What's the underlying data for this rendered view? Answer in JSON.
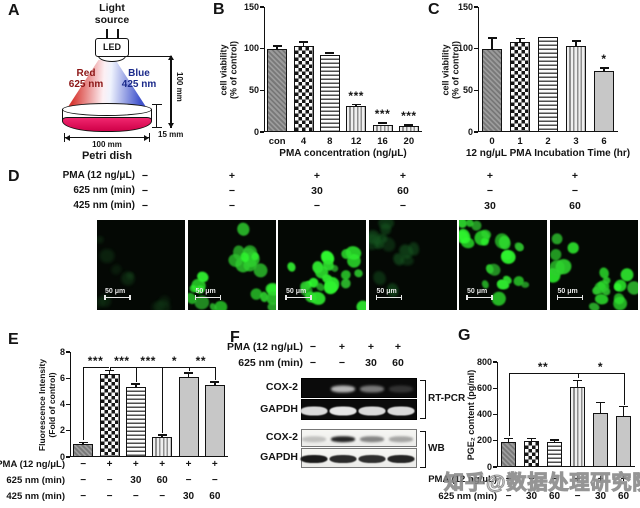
{
  "panels": {
    "a": {
      "label": "A"
    },
    "b": {
      "label": "B"
    },
    "c": {
      "label": "C"
    },
    "d": {
      "label": "D"
    },
    "e": {
      "label": "E"
    },
    "f": {
      "label": "F"
    },
    "g": {
      "label": "G"
    }
  },
  "panel_a": {
    "light_source": "Light source",
    "led": "LED",
    "red": "Red\n625 nm",
    "blue": "Blue\n425 nm",
    "dim_vertical": "100 mm",
    "dim_dish_height": "15 mm",
    "dim_dish_width": "100 mm",
    "petri_dish": "Petri dish",
    "colors": {
      "red_text": "#8c1616",
      "blue_text": "#1b2a8a",
      "dish": "#e1004c"
    }
  },
  "chart_data": [
    {
      "id": "b",
      "type": "bar",
      "panel": "B",
      "ylabel": "cell viability\n(% of control)",
      "xlabel": "PMA concentration (ng/μL)",
      "categories": [
        "con",
        "4",
        "8",
        "12",
        "16",
        "20"
      ],
      "values": [
        100,
        103,
        93,
        31,
        9,
        7
      ],
      "errors": [
        3,
        5,
        2,
        2,
        2,
        1.5
      ],
      "ylim": [
        0,
        150
      ],
      "yticks": [
        0,
        50,
        100,
        150
      ],
      "patterns": [
        "diag",
        "check",
        "hlines",
        "vlines",
        "vlines",
        "vlines"
      ],
      "sig_above": [
        "",
        "",
        "",
        "***",
        "***",
        "***"
      ]
    },
    {
      "id": "c",
      "type": "bar",
      "panel": "C",
      "ylabel": "cell viability\n(% of control)",
      "xlabel": "12 ng/μL PMA Incubation Time (hr)",
      "categories": [
        "0",
        "1",
        "2",
        "3",
        "6"
      ],
      "values": [
        100,
        108,
        114,
        103,
        73
      ],
      "errors": [
        13,
        4,
        0,
        6,
        4
      ],
      "ylim": [
        0,
        150
      ],
      "yticks": [
        0,
        50,
        100,
        150
      ],
      "patterns": [
        "diag",
        "check",
        "hlines",
        "vlines",
        "solid"
      ],
      "sig_above": [
        "",
        "",
        "",
        "",
        "*"
      ]
    },
    {
      "id": "e",
      "type": "bar",
      "panel": "E",
      "ylabel": "Fluorescence Intensity\n(Fold of control)",
      "xlabel": "",
      "categories": [
        "",
        "",
        "",
        "",
        "",
        ""
      ],
      "values": [
        1.0,
        6.3,
        5.3,
        1.5,
        6.1,
        5.5
      ],
      "errors": [
        0.12,
        0.3,
        0.25,
        0.18,
        0.3,
        0.2
      ],
      "ylim": [
        0,
        8
      ],
      "yticks": [
        0,
        2,
        4,
        6,
        8
      ],
      "patterns": [
        "diag",
        "check",
        "hlines",
        "vlines",
        "solid",
        "solid"
      ],
      "sig_brackets": [
        {
          "label": "***",
          "from": 0,
          "to": 1,
          "star": "end"
        },
        {
          "label": "***",
          "from": 1,
          "to": 2,
          "star": "end"
        },
        {
          "label": "***",
          "from": 1,
          "to": 3,
          "star": "end"
        },
        {
          "label": "*",
          "from": 1,
          "to": 4,
          "star": "end"
        },
        {
          "label": "**",
          "from": 1,
          "to": 5,
          "star": "end"
        }
      ],
      "matrix": [
        {
          "label": "PMA (12 ng/μL)",
          "values": [
            "−",
            "+",
            "+",
            "+",
            "+",
            "+"
          ]
        },
        {
          "label": "625 nm (min)",
          "values": [
            "−",
            "−",
            "30",
            "60",
            "−",
            "−"
          ]
        },
        {
          "label": "425 nm (min)",
          "values": [
            "−",
            "−",
            "−",
            "−",
            "30",
            "60"
          ]
        }
      ]
    },
    {
      "id": "g",
      "type": "bar",
      "panel": "G",
      "ylabel": "PGE₂ content (pg/ml)",
      "xlabel": "",
      "values": [
        190,
        195,
        190,
        610,
        410,
        390
      ],
      "errors": [
        28,
        22,
        15,
        50,
        80,
        70
      ],
      "ylim": [
        0,
        800
      ],
      "yticks": [
        0,
        200,
        400,
        600,
        800
      ],
      "patterns": [
        "diag",
        "check",
        "hlines",
        "vlines",
        "solid",
        "solid"
      ],
      "sig_brackets": [
        {
          "label": "**",
          "from": 0,
          "to": 3,
          "star": "mid"
        },
        {
          "label": "*",
          "from": 3,
          "to": 5,
          "star": "mid"
        }
      ],
      "matrix": [
        {
          "label": "PMA (12 ng/μL)",
          "values": [
            "−",
            "−",
            "−",
            "+",
            "+",
            "+"
          ]
        },
        {
          "label": "625 nm (min)",
          "values": [
            "−",
            "30",
            "60",
            "−",
            "30",
            "60"
          ]
        }
      ]
    }
  ],
  "panel_d": {
    "matrix": [
      {
        "label": "PMA (12 ng/μL)",
        "values": [
          "−",
          "+",
          "+",
          "+",
          "+",
          "+"
        ]
      },
      {
        "label": "625 nm (min)",
        "values": [
          "−",
          "−",
          "30",
          "60",
          "−",
          "−"
        ]
      },
      {
        "label": "425 nm (min)",
        "values": [
          "−",
          "−",
          "−",
          "−",
          "30",
          "60"
        ]
      }
    ],
    "scale_bar": "50 μm",
    "images": [
      {
        "level": "verydim",
        "cells": 10
      },
      {
        "level": "bright",
        "cells": 26
      },
      {
        "level": "bright",
        "cells": 24
      },
      {
        "level": "dim",
        "cells": 14
      },
      {
        "level": "bright",
        "cells": 24
      },
      {
        "level": "bright",
        "cells": 20
      }
    ]
  },
  "panel_f": {
    "header_rows": [
      {
        "label": "PMA (12 ng/μL)",
        "values": [
          "−",
          "+",
          "+",
          "+"
        ]
      },
      {
        "label": "625 nm (min)",
        "values": [
          "−",
          "−",
          "30",
          "60"
        ]
      }
    ],
    "gels": [
      {
        "label": "COX-2",
        "bg": "dark",
        "bands": [
          0,
          0.78,
          0.5,
          0.18
        ]
      },
      {
        "label": "GAPDH",
        "bg": "dark",
        "bands": [
          0.95,
          1,
          0.95,
          0.95
        ]
      },
      {
        "label": "COX-2",
        "bg": "light",
        "bands": [
          0.22,
          0.95,
          0.5,
          0.35
        ]
      },
      {
        "label": "GAPDH",
        "bg": "light",
        "bands": [
          1,
          0.92,
          0.9,
          0.95
        ]
      }
    ],
    "methods": [
      {
        "label": "RT-PCR"
      },
      {
        "label": "WB"
      }
    ]
  },
  "watermark": "知乎@数据处理研究院"
}
